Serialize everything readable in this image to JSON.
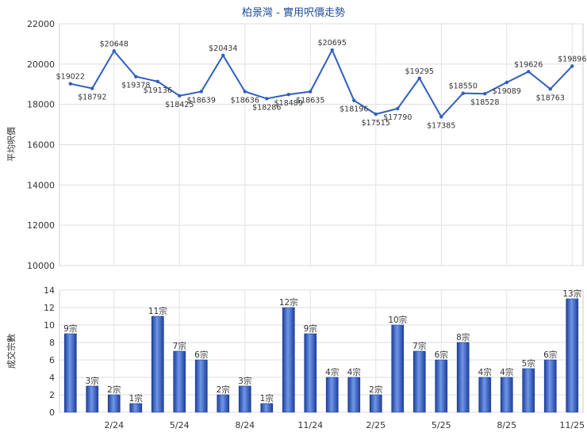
{
  "chart_data": [
    {
      "type": "line",
      "title": "柏景灣 - 實用呎價走勢",
      "ylabel": "平均呎價",
      "ylim": [
        10000,
        22000
      ],
      "yticks": [
        10000,
        12000,
        14000,
        16000,
        18000,
        20000,
        22000
      ],
      "x_tick_labels": [
        "2/24",
        "5/24",
        "8/24",
        "11/24",
        "2/25",
        "5/25",
        "8/25",
        "11/25"
      ],
      "series": [
        {
          "values": [
            19022,
            18792,
            20648,
            19378,
            19136,
            18425,
            18639,
            20434,
            18636,
            18286,
            18489,
            18635,
            20695,
            18196,
            17515,
            17790,
            19295,
            17385,
            18550,
            18528,
            19089,
            19626,
            18763,
            19896
          ],
          "labels": [
            "$19022",
            "$18792",
            "$20648",
            "$19378",
            "$19136",
            "$18425",
            "$18639",
            "$20434",
            "$18636",
            "$18286",
            "$18489",
            "$18635",
            "$20695",
            "$18196",
            "$17515",
            "$17790",
            "$19295",
            "$17385",
            "$18550",
            "$18528",
            "$19089",
            "$19626",
            "$18763",
            "$19896"
          ]
        }
      ],
      "color": "#2f5fbf",
      "grid": true
    },
    {
      "type": "bar",
      "ylabel": "成交宗數",
      "ylim": [
        0,
        14
      ],
      "yticks": [
        0,
        2,
        4,
        6,
        8,
        10,
        12,
        14
      ],
      "x_tick_labels": [
        "2/24",
        "5/24",
        "8/24",
        "11/24",
        "2/25",
        "5/25",
        "8/25",
        "11/25"
      ],
      "values": [
        9,
        3,
        2,
        1,
        11,
        7,
        6,
        2,
        3,
        1,
        12,
        9,
        4,
        4,
        2,
        10,
        7,
        6,
        8,
        4,
        4,
        5,
        6,
        13
      ],
      "labels": [
        "9宗",
        "3宗",
        "2宗",
        "1宗",
        "11宗",
        "7宗",
        "6宗",
        "2宗",
        "3宗",
        "1宗",
        "12宗",
        "9宗",
        "4宗",
        "4宗",
        "2宗",
        "10宗",
        "7宗",
        "6宗",
        "8宗",
        "4宗",
        "4宗",
        "5宗",
        "6宗",
        "13宗"
      ],
      "color": "#2f5fbf",
      "grid": true
    }
  ]
}
